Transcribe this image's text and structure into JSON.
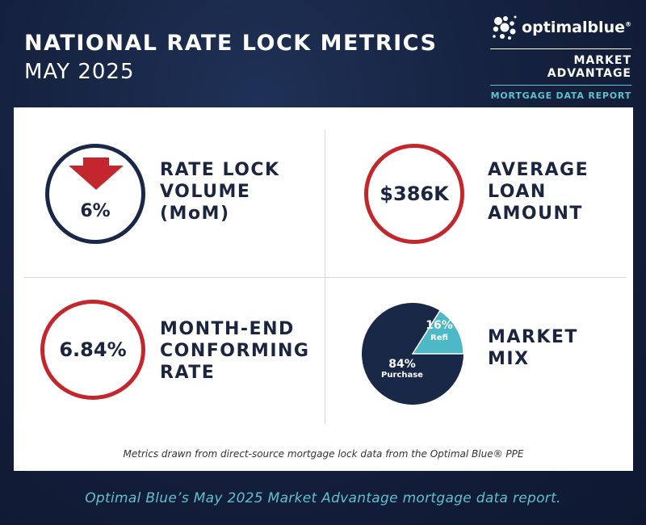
{
  "header": {
    "title": "NATIONAL RATE LOCK METRICS",
    "subtitle": "MAY 2025"
  },
  "brand": {
    "name": "optimalblue",
    "registered_mark": "®",
    "line1": "MARKET ADVANTAGE",
    "line2": "MORTGAGE DATA REPORT",
    "accent_color": "#5fc0cd"
  },
  "metrics": {
    "rate_lock_volume": {
      "value": "6%",
      "direction": "down",
      "label": "RATE LOCK\nVOLUME\n(MoM)",
      "icon": "arrow-down-icon",
      "circle_color": "#1a2847",
      "arrow_color": "#c4262e"
    },
    "average_loan_amount": {
      "value": "$386K",
      "label": "AVERAGE\nLOAN\nAMOUNT",
      "circle_color": "#c4262e"
    },
    "conforming_rate": {
      "value": "6.84%",
      "label": "MONTH-END\nCONFORMING\nRATE",
      "circle_color": "#c4262e"
    },
    "market_mix": {
      "label": "MARKET\nMIX",
      "slices": [
        {
          "name": "Refi",
          "percent": "16%",
          "value": 16,
          "color": "#4db8c6"
        },
        {
          "name": "Purchase",
          "percent": "84%",
          "value": 84,
          "color": "#1a2847"
        }
      ]
    }
  },
  "footnote": "Metrics drawn from direct-source mortgage lock data from the Optimal Blue® PPE",
  "caption": "Optimal Blue’s May 2025 Market Advantage mortgage data report."
}
